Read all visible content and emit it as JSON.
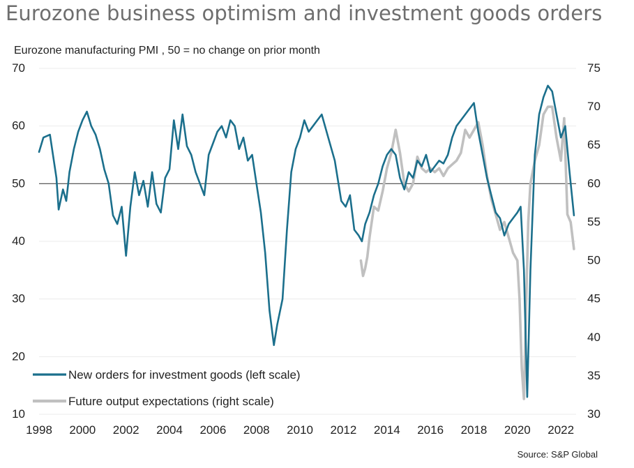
{
  "chart_data": {
    "type": "line",
    "title": "Eurozone business optimism and investment goods orders",
    "subtitle": "Eurozone manufacturing PMI , 50 = no change on prior month",
    "source": "Source: S&P Global",
    "x_ticks": [
      "1998",
      "2000",
      "2002",
      "2004",
      "2006",
      "2008",
      "2010",
      "2012",
      "2014",
      "2016",
      "2018",
      "2020",
      "2022"
    ],
    "x_range": [
      1998,
      2022.7
    ],
    "y_left": {
      "range": [
        10,
        70
      ],
      "ticks": [
        "10",
        "20",
        "30",
        "40",
        "50",
        "60",
        "70"
      ]
    },
    "y_right": {
      "range": [
        30,
        75
      ],
      "ticks": [
        "30",
        "35",
        "40",
        "45",
        "50",
        "55",
        "60",
        "65",
        "70",
        "75"
      ]
    },
    "reference_line": 50,
    "colors": {
      "new_orders": "#1b6f8c",
      "future_output": "#c0c0c0",
      "reference": "#4a4a4a",
      "grid": "#ebebeb"
    },
    "series": [
      {
        "name": "New orders for investment goods (left scale)",
        "axis": "left",
        "x": [
          1998.0,
          1998.2,
          1998.5,
          1998.8,
          1998.9,
          1999.1,
          1999.25,
          1999.4,
          1999.6,
          1999.8,
          2000.0,
          2000.2,
          2000.4,
          2000.6,
          2000.8,
          2001.0,
          2001.2,
          2001.4,
          2001.6,
          2001.8,
          2002.0,
          2002.2,
          2002.4,
          2002.6,
          2002.8,
          2003.0,
          2003.2,
          2003.4,
          2003.6,
          2003.8,
          2004.0,
          2004.2,
          2004.4,
          2004.6,
          2004.8,
          2005.0,
          2005.2,
          2005.4,
          2005.6,
          2005.8,
          2006.0,
          2006.2,
          2006.4,
          2006.6,
          2006.8,
          2007.0,
          2007.2,
          2007.4,
          2007.6,
          2007.8,
          2008.0,
          2008.2,
          2008.4,
          2008.6,
          2008.8,
          2008.95,
          2009.2,
          2009.4,
          2009.6,
          2009.8,
          2010.0,
          2010.2,
          2010.4,
          2010.6,
          2010.8,
          2011.0,
          2011.3,
          2011.6,
          2011.9,
          2012.1,
          2012.3,
          2012.5,
          2012.7,
          2012.85,
          2013.0,
          2013.2,
          2013.4,
          2013.6,
          2013.8,
          2014.0,
          2014.2,
          2014.4,
          2014.6,
          2014.8,
          2015.0,
          2015.2,
          2015.4,
          2015.6,
          2015.8,
          2016.0,
          2016.2,
          2016.4,
          2016.6,
          2016.8,
          2017.0,
          2017.2,
          2017.4,
          2017.6,
          2017.8,
          2018.0,
          2018.2,
          2018.4,
          2018.6,
          2018.8,
          2019.0,
          2019.2,
          2019.4,
          2019.6,
          2019.8,
          2020.0,
          2020.15,
          2020.3,
          2020.45,
          2020.6,
          2020.8,
          2021.0,
          2021.2,
          2021.4,
          2021.6,
          2021.8,
          2022.0,
          2022.2,
          2022.4,
          2022.6
        ],
        "values": [
          55.5,
          58.0,
          58.5,
          51.0,
          45.5,
          49.0,
          47.0,
          52.0,
          56.0,
          59.0,
          61.0,
          62.5,
          60.0,
          58.5,
          56.0,
          52.5,
          50.0,
          44.5,
          43.0,
          46.0,
          37.5,
          46.0,
          52.0,
          48.0,
          50.5,
          46.0,
          52.0,
          46.5,
          45.0,
          51.0,
          52.5,
          61.0,
          56.0,
          62.0,
          56.5,
          55.0,
          52.0,
          50.0,
          48.0,
          55.0,
          57.0,
          59.0,
          60.0,
          58.0,
          61.0,
          60.0,
          56.0,
          58.0,
          54.0,
          55.0,
          50.0,
          45.0,
          38.0,
          28.0,
          22.0,
          25.5,
          30.0,
          42.0,
          52.0,
          56.0,
          58.0,
          61.0,
          59.0,
          60.0,
          61.0,
          62.0,
          58.0,
          54.0,
          47.0,
          46.0,
          48.0,
          42.0,
          41.0,
          40.0,
          43.0,
          45.0,
          48.0,
          50.0,
          53.0,
          55.0,
          56.0,
          55.0,
          51.0,
          49.0,
          52.0,
          51.0,
          54.0,
          53.0,
          55.0,
          52.0,
          53.0,
          54.0,
          53.5,
          55.0,
          58.0,
          60.0,
          61.0,
          62.0,
          63.0,
          64.0,
          59.0,
          55.0,
          51.0,
          48.0,
          45.0,
          44.0,
          41.0,
          43.0,
          44.0,
          45.0,
          46.0,
          35.0,
          13.0,
          35.0,
          55.0,
          62.0,
          65.0,
          67.0,
          66.0,
          62.0,
          58.0,
          60.0,
          52.0,
          44.5
        ]
      },
      {
        "name": "Future output expectations (right scale)",
        "axis": "right",
        "x": [
          2012.8,
          2012.9,
          2013.0,
          2013.1,
          2013.2,
          2013.4,
          2013.6,
          2013.8,
          2014.0,
          2014.2,
          2014.4,
          2014.6,
          2014.8,
          2015.0,
          2015.2,
          2015.4,
          2015.6,
          2015.8,
          2016.0,
          2016.2,
          2016.4,
          2016.6,
          2016.8,
          2017.0,
          2017.2,
          2017.4,
          2017.6,
          2017.8,
          2018.0,
          2018.2,
          2018.4,
          2018.6,
          2018.8,
          2019.0,
          2019.2,
          2019.4,
          2019.6,
          2019.8,
          2020.0,
          2020.1,
          2020.2,
          2020.3,
          2020.4,
          2020.5,
          2020.6,
          2020.8,
          2021.0,
          2021.2,
          2021.4,
          2021.6,
          2021.8,
          2022.0,
          2022.15,
          2022.3,
          2022.45,
          2022.6
        ],
        "values": [
          50.0,
          48.0,
          49.0,
          50.5,
          53.0,
          57.0,
          56.5,
          59.0,
          62.0,
          64.0,
          67.0,
          64.0,
          60.0,
          59.0,
          60.0,
          63.5,
          62.0,
          61.5,
          62.0,
          61.5,
          62.0,
          61.0,
          62.0,
          62.5,
          63.0,
          64.0,
          67.0,
          66.0,
          67.0,
          68.0,
          65.0,
          61.0,
          58.0,
          56.0,
          54.0,
          55.0,
          53.0,
          51.0,
          50.0,
          45.0,
          36.0,
          32.0,
          44.0,
          55.0,
          60.0,
          63.0,
          65.0,
          69.0,
          70.0,
          70.0,
          66.0,
          63.0,
          68.5,
          56.0,
          55.0,
          51.5
        ]
      }
    ]
  }
}
